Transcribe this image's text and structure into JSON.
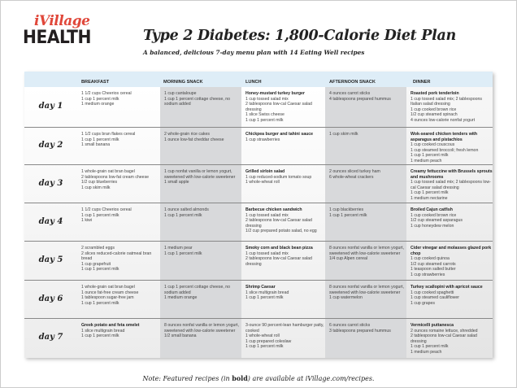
{
  "logo": {
    "top": "iVillage",
    "bottom": "HEALTH"
  },
  "title": "Type 2 Diabetes: 1,800-Calorie Diet Plan",
  "subtitle": "A balanced, delicious 7-day menu plan with 14 Eating Well recipes",
  "columns": [
    "BREAKFAST",
    "MORNING SNACK",
    "LUNCH",
    "AFTERNOON SNACK",
    "DINNER"
  ],
  "colors": {
    "header": "#deedf7",
    "snack_column": "#d6d7d9",
    "accent": "#e0473a"
  },
  "days": [
    {
      "label": "day 1",
      "cells": [
        {
          "bold": "",
          "lines": [
            "1 1/2 cups Cheerios cereal",
            "1 cup 1 percent milk",
            "1 medium orange"
          ]
        },
        {
          "bold": "",
          "lines": [
            "1 cup cantaloupe",
            "1 cup 1 percent cottage cheese, no sodium added"
          ]
        },
        {
          "bold": "Honey-mustard turkey burger",
          "lines": [
            "1 cup tossed salad mix",
            "2 tablespoons low-cal Caesar salad dressing",
            "1 slice Swiss cheese",
            "1 cup 1 percent milk"
          ]
        },
        {
          "bold": "",
          "lines": [
            "4 ounces carrot sticks",
            "4 tablespoons prepared hummus"
          ]
        },
        {
          "bold": "Roasted pork tenderloin",
          "lines": [
            "1 cup tossed salad mix; 2 tablespoons Italian salad dressing",
            "1 cup cooked brown rice",
            "1/2 cup steamed spinach",
            "4 ounces low-calorie nonfat yogurt"
          ]
        }
      ]
    },
    {
      "label": "day 2",
      "cells": [
        {
          "bold": "",
          "lines": [
            "1 1/2 cups bran flakes cereal",
            "1 cup 1 percent milk",
            "1 small banana"
          ]
        },
        {
          "bold": "",
          "lines": [
            "2 whole-grain rice cakes",
            "1 ounce low-fat cheddar cheese"
          ]
        },
        {
          "bold": "Chickpea burger and tahini sauce",
          "lines": [
            "1 cup strawberries"
          ]
        },
        {
          "bold": "",
          "lines": [
            "1 cup skim milk"
          ]
        },
        {
          "bold": "Wok-seared chicken tenders with asparagus and pistachios",
          "lines": [
            "1 cup cooked couscous",
            "1 cup steamed broccoli; fresh lemon",
            "1 cup 1 percent milk",
            "1 medium peach"
          ]
        }
      ]
    },
    {
      "label": "day 3",
      "cells": [
        {
          "bold": "",
          "lines": [
            "1 whole-grain oat bran bagel",
            "2 tablespoons low-fat cream cheese",
            "1/2 cup blueberries",
            "1 cup skim milk"
          ]
        },
        {
          "bold": "",
          "lines": [
            "1 cup nonfat vanilla or lemon yogurt, sweetened with low-calorie sweetener",
            "1 small apple"
          ]
        },
        {
          "bold": "Grilled sirloin salad",
          "lines": [
            "1 cup reduced-sodium tomato soup",
            "1 whole-wheat roll"
          ]
        },
        {
          "bold": "",
          "lines": [
            "2 ounces sliced turkey ham",
            "6 whole-wheat crackers"
          ]
        },
        {
          "bold": "Creamy fettuccine with Brussels sprouts and mushrooms",
          "lines": [
            "1 cup tossed salad mix; 2 tablespoons low-cal Caesar salad dressing",
            "1 cup 1 percent milk",
            "1 medium nectarine"
          ]
        }
      ]
    },
    {
      "label": "day 4",
      "cells": [
        {
          "bold": "",
          "lines": [
            "1 1/2 cups Cheerios cereal",
            "1 cup 1 percent milk",
            "1 kiwi"
          ]
        },
        {
          "bold": "",
          "lines": [
            "1 ounce salted almonds",
            "1 cup 1 percent milk"
          ]
        },
        {
          "bold": "Barbecue chicken sandwich",
          "lines": [
            "1 cup tossed salad mix",
            "2 tablespoons low-cal Caesar salad dressing",
            "1/2 cup prepared potato salad, no egg"
          ]
        },
        {
          "bold": "",
          "lines": [
            "1 cup blackberries",
            "1 cup 1 percent milk"
          ]
        },
        {
          "bold": "Broiled Cajun catfish",
          "lines": [
            "1 cup cooked brown rice",
            "1/2 cup steamed asparagus",
            "1 cup honeydew melon"
          ]
        }
      ]
    },
    {
      "label": "day 5",
      "cells": [
        {
          "bold": "",
          "lines": [
            "2 scrambled eggs",
            "2 slices reduced-calorie oatmeal bran bread",
            "1 cup grapefruit",
            "1 cup 1 percent milk"
          ]
        },
        {
          "bold": "",
          "lines": [
            "1 medium pear",
            "1 cup 1 percent milk"
          ]
        },
        {
          "bold": "Smoky corn and black bean pizza",
          "lines": [
            "1 cup tossed salad mix",
            "2 tablespoons low-cal Caesar salad dressing"
          ]
        },
        {
          "bold": "",
          "lines": [
            "8 ounces nonfat vanilla or lemon yogurt, sweetened with low-calorie sweetener",
            "1/4 cup Alpen cereal"
          ]
        },
        {
          "bold": "Cider vinegar and molasses glazed pork chop",
          "lines": [
            "1 cup cooked quinoa",
            "1/2 cup steamed carrots",
            "1 teaspoon salted butter",
            "1 cup strawberries"
          ]
        }
      ]
    },
    {
      "label": "day 6",
      "cells": [
        {
          "bold": "",
          "lines": [
            "1 whole-grain oat bran bagel",
            "1 ounce fat-free cream cheese",
            "1 tablespoon sugar-free jam",
            "1 cup 1 percent milk"
          ]
        },
        {
          "bold": "",
          "lines": [
            "1 cup 1 percent cottage cheese, no sodium added",
            "1 medium orange"
          ]
        },
        {
          "bold": "Shrimp Caesar",
          "lines": [
            "1 slice multigrain bread",
            "1 cup 1 percent milk"
          ]
        },
        {
          "bold": "",
          "lines": [
            "8 ounces nonfat vanilla or lemon yogurt, sweetened with low-calorie sweetener",
            "1 cup watermelon"
          ]
        },
        {
          "bold": "Turkey scallopini with apricot sauce",
          "lines": [
            "1 cup cooked spaghetti",
            "1 cup steamed cauliflower",
            "1 cup grapes"
          ]
        }
      ]
    },
    {
      "label": "day 7",
      "cells": [
        {
          "bold": "Greek potato and feta omelet",
          "lines": [
            "1 slice multigrain bread",
            "1 cup 1 percent milk"
          ]
        },
        {
          "bold": "",
          "lines": [
            "8 ounces nonfat vanilla or lemon yogurt, sweetened with low-calorie sweetener",
            "1/2 small banana"
          ]
        },
        {
          "bold": "",
          "lines": [
            "3-ounce 90 percent-lean hamburger patty, cooked",
            "1 whole-wheat roll",
            "1 cup prepared coleslaw",
            "1 cup 1 percent milk"
          ]
        },
        {
          "bold": "",
          "lines": [
            "6 ounces carrot sticks",
            "3 tablespoons prepared hummus"
          ]
        },
        {
          "bold": "Vermicelli puttanesca",
          "lines": [
            "2 ounces romaine lettuce, shredded",
            "2 tablespoons low-cal Caesar salad dressing",
            "1 cup 1 percent milk",
            "1 medium peach"
          ]
        }
      ]
    }
  ],
  "note": {
    "before": "Note: Featured recipes (in ",
    "bold": "bold",
    "after": ") are available at iVillage.com/recipes."
  }
}
